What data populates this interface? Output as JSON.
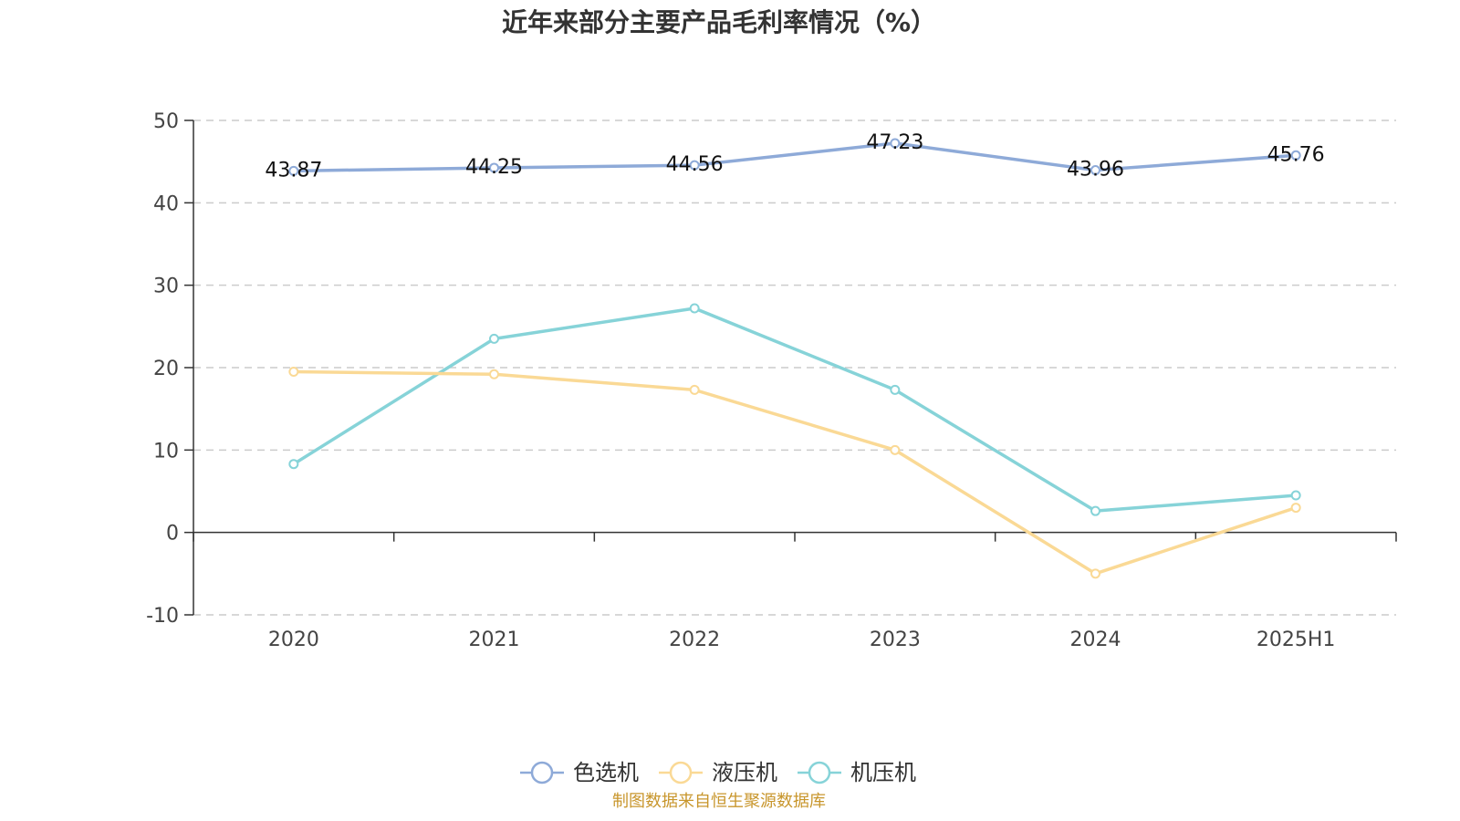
{
  "chart_data": {
    "type": "line",
    "title": "近年来部分主要产品毛利率情况（%）",
    "categories": [
      "2020",
      "2021",
      "2022",
      "2023",
      "2024",
      "2025H1"
    ],
    "ylim": [
      -10,
      50
    ],
    "yticks": [
      -10,
      0,
      10,
      20,
      30,
      40,
      50
    ],
    "grid": true,
    "legend_position": "bottom",
    "series": [
      {
        "name": "色选机",
        "color": "#8eaad8",
        "values": [
          43.87,
          44.25,
          44.56,
          47.23,
          43.96,
          45.76
        ],
        "show_labels": true
      },
      {
        "name": "液压机",
        "color": "#fad995",
        "values": [
          19.5,
          19.2,
          17.3,
          10.0,
          -5.0,
          3.0
        ],
        "show_labels": false
      },
      {
        "name": "机压机",
        "color": "#86d3d8",
        "values": [
          8.3,
          23.5,
          27.2,
          17.3,
          2.6,
          4.5
        ],
        "show_labels": false
      }
    ]
  },
  "source_text": "制图数据来自恒生聚源数据库",
  "source_color": "#c8962c"
}
